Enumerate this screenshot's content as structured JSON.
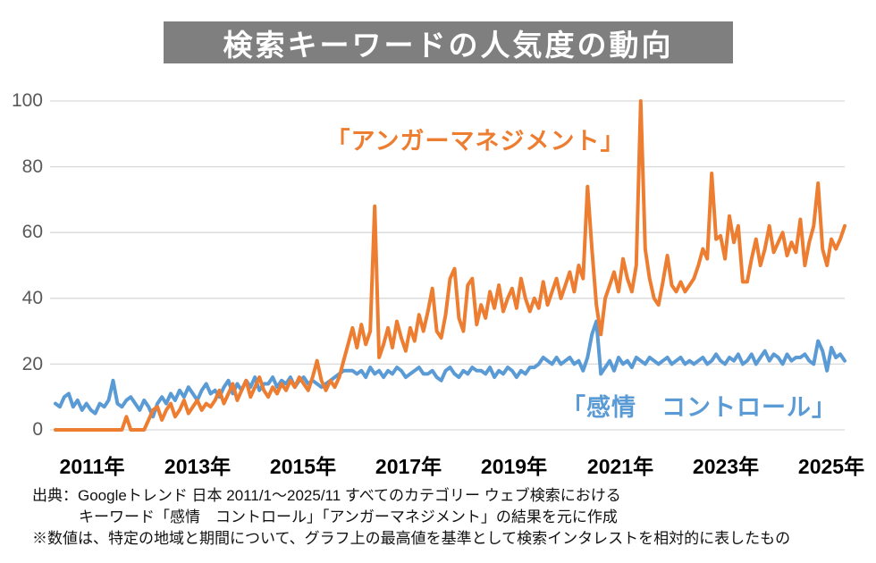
{
  "title": "検索キーワードの人気度の動向",
  "series_labels": {
    "anger": "「アンガーマネジメント」",
    "emotion": "「感情　コントロール」"
  },
  "colors": {
    "anger_line": "#ED7D31",
    "emotion_line": "#5B9BD5",
    "title_bg": "#7F7F7F",
    "title_text": "#FFFFFF",
    "grid": "#D9D9D9",
    "y_tick_text": "#595959",
    "x_tick_text": "#000000"
  },
  "y_axis": {
    "ticks": [
      "100",
      "80",
      "60",
      "40",
      "20",
      "0"
    ]
  },
  "x_axis": {
    "ticks": [
      "2011年",
      "2013年",
      "2015年",
      "2017年",
      "2019年",
      "2021年",
      "2023年",
      "2025年"
    ]
  },
  "footnotes": [
    "出典：Googleトレンド 日本 2011/1～2025/11 すべてのカテゴリー ウェブ検索における",
    "キーワード「感情　コントロール」「アンガーマネジメント」の結果を元に作成",
    "※数値は、特定の地域と期間について、グラフ上の最高値を基準として検索インタレストを相対的に表したもの"
  ],
  "chart_data": {
    "type": "line",
    "title": "検索キーワードの人気度の動向",
    "x_unit": "month",
    "x_range": [
      "2011-01",
      "2025-11"
    ],
    "x_tick_labels": [
      "2011年",
      "2013年",
      "2015年",
      "2017年",
      "2019年",
      "2021年",
      "2023年",
      "2025年"
    ],
    "ylim": [
      0,
      100
    ],
    "y_ticks": [
      0,
      20,
      40,
      60,
      80,
      100
    ],
    "grid": "horizontal",
    "legend": "inline-text-labels",
    "series": [
      {
        "id": "emotion-control",
        "name": "感情 コントロール",
        "label": "「感情　コントロール」",
        "color": "#5B9BD5",
        "values": [
          8,
          7,
          10,
          11,
          7,
          9,
          6,
          8,
          6,
          5,
          8,
          7,
          9,
          15,
          8,
          7,
          9,
          10,
          8,
          6,
          9,
          7,
          4,
          8,
          10,
          8,
          11,
          9,
          12,
          10,
          13,
          11,
          9,
          12,
          14,
          11,
          12,
          10,
          13,
          15,
          11,
          14,
          12,
          15,
          13,
          16,
          12,
          14,
          14,
          16,
          13,
          15,
          14,
          16,
          13,
          15,
          16,
          14,
          15,
          14,
          13,
          14,
          15,
          16,
          17,
          18,
          18,
          18,
          17,
          18,
          16,
          19,
          17,
          18,
          16,
          18,
          17,
          19,
          18,
          16,
          17,
          18,
          19,
          17,
          17,
          18,
          16,
          15,
          18,
          19,
          17,
          16,
          18,
          17,
          19,
          18,
          18,
          17,
          19,
          16,
          18,
          17,
          19,
          18,
          16,
          18,
          17,
          19,
          19,
          20,
          22,
          21,
          20,
          22,
          20,
          21,
          22,
          20,
          21,
          18,
          22,
          29,
          33,
          17,
          19,
          21,
          18,
          22,
          20,
          21,
          19,
          22,
          21,
          20,
          22,
          21,
          20,
          21,
          22,
          20,
          21,
          22,
          20,
          21,
          20,
          21,
          22,
          20,
          21,
          23,
          21,
          20,
          22,
          21,
          23,
          20,
          21,
          23,
          20,
          22,
          24,
          21,
          23,
          22,
          20,
          23,
          21,
          22,
          22,
          23,
          21,
          20,
          27,
          24,
          18,
          25,
          22,
          23,
          21
        ]
      },
      {
        "id": "anger-management",
        "name": "アンガーマネジメント",
        "label": "「アンガーマネジメント」",
        "color": "#ED7D31",
        "values": [
          0,
          0,
          0,
          0,
          0,
          0,
          0,
          0,
          0,
          0,
          0,
          0,
          0,
          0,
          0,
          0,
          4,
          0,
          0,
          0,
          0,
          3,
          6,
          7,
          3,
          6,
          8,
          4,
          6,
          9,
          5,
          7,
          9,
          6,
          8,
          7,
          9,
          12,
          8,
          11,
          14,
          9,
          12,
          15,
          10,
          13,
          16,
          12,
          10,
          13,
          11,
          14,
          12,
          15,
          13,
          16,
          14,
          12,
          16,
          21,
          15,
          12,
          15,
          13,
          16,
          21,
          26,
          31,
          25,
          32,
          26,
          30,
          68,
          22,
          26,
          31,
          25,
          33,
          28,
          24,
          31,
          27,
          35,
          30,
          36,
          43,
          30,
          28,
          35,
          46,
          49,
          34,
          30,
          44,
          46,
          32,
          38,
          34,
          42,
          37,
          44,
          36,
          40,
          43,
          37,
          46,
          40,
          36,
          40,
          37,
          45,
          38,
          42,
          46,
          40,
          44,
          48,
          42,
          50,
          46,
          74,
          55,
          38,
          29,
          40,
          44,
          48,
          42,
          52,
          46,
          42,
          50,
          100,
          55,
          46,
          40,
          38,
          45,
          53,
          44,
          42,
          45,
          42,
          44,
          46,
          50,
          55,
          52,
          78,
          58,
          59,
          52,
          65,
          57,
          62,
          45,
          45,
          52,
          58,
          50,
          55,
          62,
          54,
          57,
          60,
          53,
          57,
          54,
          64,
          50,
          57,
          62,
          75,
          55,
          50,
          58,
          55,
          58,
          62
        ]
      }
    ]
  }
}
